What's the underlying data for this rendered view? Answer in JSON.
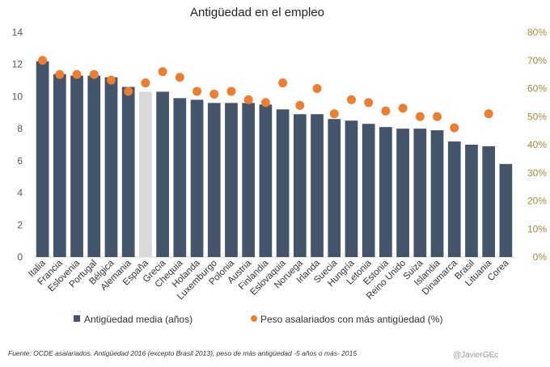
{
  "chart_data": {
    "type": "bar",
    "title": "Antigüedad en el empleo",
    "categories": [
      "Italia",
      "Francia",
      "Eslovenia",
      "Portugal",
      "Bélgica",
      "Alemania",
      "España",
      "Grecia",
      "Chequia",
      "Holanda",
      "Luxemburgo",
      "Polonia",
      "Austria",
      "Finlandia",
      "Eslovaquia",
      "Noruega",
      "Irlanda",
      "Suecia",
      "Hungría",
      "Letonia",
      "Estonia",
      "Reino Unido",
      "Suiza",
      "Islandia",
      "Dinamarca",
      "Brasil",
      "Lituania",
      "Corea"
    ],
    "highlight_category": "España",
    "series": [
      {
        "name": "Antigüedad media (años)",
        "type": "bar",
        "axis": "left",
        "color": "#44546a",
        "highlight_color": "#d9d9d9",
        "values": [
          12.2,
          11.4,
          11.3,
          11.3,
          11.2,
          10.6,
          10.3,
          10.3,
          9.9,
          9.8,
          9.6,
          9.6,
          9.6,
          9.5,
          9.2,
          8.9,
          8.9,
          8.6,
          8.5,
          8.3,
          8.1,
          8.0,
          8.0,
          7.9,
          7.2,
          7.0,
          6.9,
          5.8
        ]
      },
      {
        "name": "Peso asalariados con más antigüedad (%)",
        "type": "scatter",
        "axis": "right",
        "color": "#ed7d31",
        "values": [
          70,
          65,
          65,
          65,
          63,
          59,
          62,
          66,
          64,
          59,
          58,
          59,
          56,
          55,
          62,
          54,
          60,
          51,
          56,
          55,
          52,
          53,
          50,
          50,
          46,
          null,
          51,
          null
        ]
      }
    ],
    "y_left": {
      "min": 0,
      "max": 14,
      "ticks": [
        "0",
        "2",
        "4",
        "6",
        "8",
        "10",
        "12",
        "14"
      ]
    },
    "y_right": {
      "min": 0,
      "max": 80,
      "ticks": [
        "0%",
        "10%",
        "20%",
        "30%",
        "40%",
        "50%",
        "60%",
        "70%",
        "80%"
      ]
    },
    "grid": false,
    "legend_position": "bottom"
  },
  "footer": {
    "source": "Fuente: OCDE asalariados. Antigüedad 2016 (excepto Brasil 2013), peso de más antigüedad -5 años o más- 2015",
    "credit": "@JavierGEc"
  }
}
